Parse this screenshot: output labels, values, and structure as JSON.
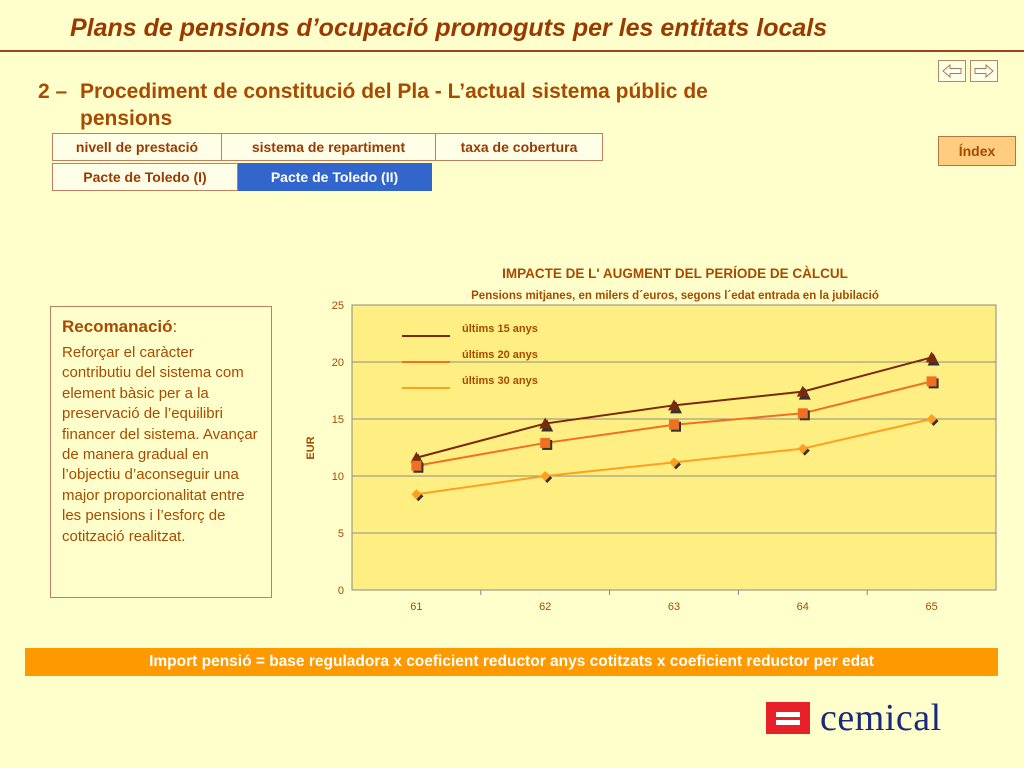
{
  "header": {
    "title": "Plans de pensions d’ocupació promoguts per les entitats locals",
    "back_icon": "left-arrow-icon",
    "forward_icon": "right-arrow-icon"
  },
  "section": {
    "number": "2 –",
    "title_line1": "Procediment de constitució del Pla - L’actual sistema públic de",
    "title_line2": "pensions"
  },
  "tabs_row1": [
    {
      "label": "nivell de prestació"
    },
    {
      "label": "sistema de repartiment"
    },
    {
      "label": "taxa de cobertura"
    }
  ],
  "tabs_row2": [
    {
      "label": "Pacte de Toledo (I)"
    },
    {
      "label": "Pacte de Toledo (II)",
      "active": true
    }
  ],
  "index_button": {
    "label": "Índex"
  },
  "recommendation": {
    "title": "Recomanació",
    "colon": ":",
    "text": "Reforçar el caràcter contributiu del sistema com element bàsic per a la preservació de l’equilibri financer del sistema. Avançar de manera gradual en l’objectiu d’aconseguir una major proporcionalitat entre les pensions i l’esforç de cotització realitzat."
  },
  "chart_data": {
    "type": "line",
    "title": "IMPACTE DE L' AUGMENT DEL PERÍODE DE CÀLCUL",
    "subtitle": "Pensions mitjanes, en milers d´euros, segons l´edat entrada en la jubilació",
    "ylabel": "EUR",
    "xlabel": "",
    "categories": [
      "61",
      "62",
      "63",
      "64",
      "65"
    ],
    "ylim": [
      0,
      25
    ],
    "yticks": [
      "0",
      "5",
      "10",
      "15",
      "20",
      "25"
    ],
    "grid": true,
    "legend_position": "top-left",
    "series": [
      {
        "name": "últims 15 anys",
        "values": [
          11.6,
          14.6,
          16.2,
          17.4,
          20.4
        ],
        "color": "#7A2A0A",
        "marker": "triangle"
      },
      {
        "name": "últims 20 anys",
        "values": [
          10.9,
          12.9,
          14.5,
          15.5,
          18.3
        ],
        "color": "#F07020",
        "marker": "square"
      },
      {
        "name": "últims 30 anys",
        "values": [
          8.4,
          10.0,
          11.2,
          12.4,
          15.0
        ],
        "color": "#FFA020",
        "marker": "diamond"
      }
    ]
  },
  "formula": {
    "text": "Import pensió = base reguladora x coeficient reductor anys cotitzats x coeficient reductor per edat"
  },
  "logo": {
    "text": "cemical",
    "color": "#E8202A"
  }
}
